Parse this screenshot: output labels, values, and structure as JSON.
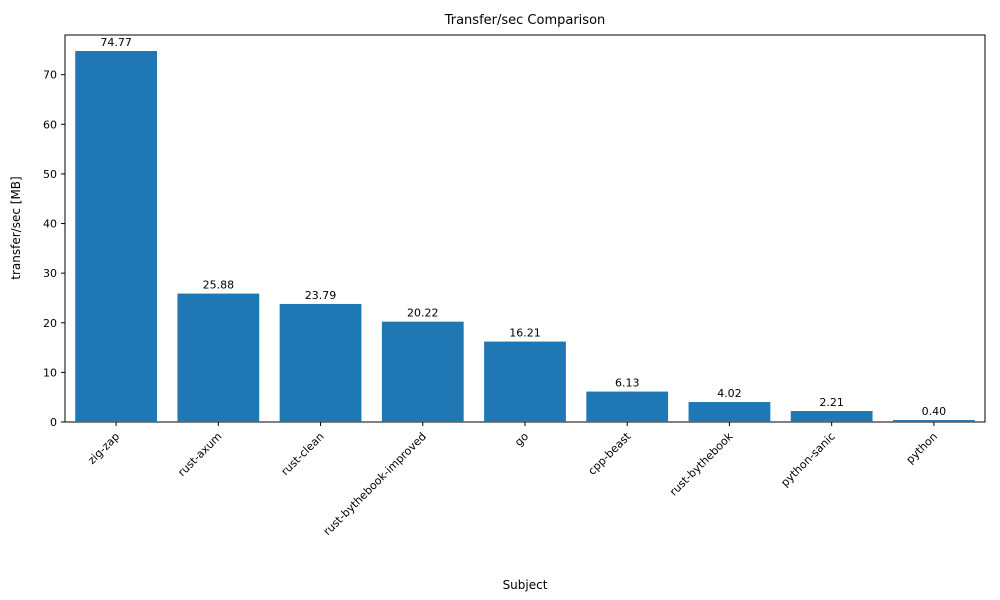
{
  "chart_data": {
    "type": "bar",
    "title": "Transfer/sec Comparison",
    "xlabel": "Subject",
    "ylabel": "transfer/sec [MB]",
    "categories": [
      "zig-zap",
      "rust-axum",
      "rust-clean",
      "rust-bythebook-improved",
      "go",
      "cpp-beast",
      "rust-bythebook",
      "python-sanic",
      "python"
    ],
    "values": [
      74.77,
      25.88,
      23.79,
      20.22,
      16.21,
      6.13,
      4.02,
      2.21,
      0.4
    ],
    "value_labels": [
      "74.77",
      "25.88",
      "23.79",
      "20.22",
      "16.21",
      "6.13",
      "4.02",
      "2.21",
      "0.40"
    ],
    "ylim": [
      0,
      78
    ],
    "yticks": [
      0,
      10,
      20,
      30,
      40,
      50,
      60,
      70
    ],
    "bar_color": "#1f77b4",
    "axis_color": "#000000",
    "grid": false,
    "legend_position": "none",
    "x_tick_rotation_deg": 45
  }
}
